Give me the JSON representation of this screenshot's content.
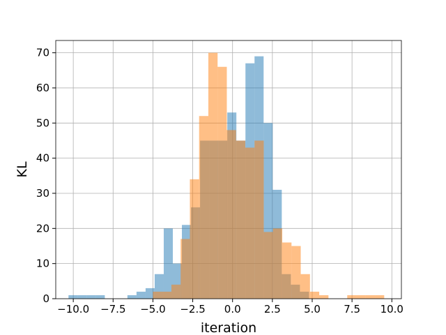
{
  "chart_data": {
    "type": "bar",
    "xlabel": "iteration",
    "ylabel": "KL",
    "xlim": [
      -11.1,
      10.6
    ],
    "ylim": [
      0,
      73.5
    ],
    "xticks": [
      -10.0,
      -7.5,
      -5.0,
      -2.5,
      0.0,
      2.5,
      5.0,
      7.5,
      10.0
    ],
    "xtick_labels": [
      "−10.0",
      "−7.5",
      "−5.0",
      "−2.5",
      "0.0",
      "2.5",
      "5.0",
      "7.5",
      "10.0"
    ],
    "yticks": [
      0,
      10,
      20,
      30,
      40,
      50,
      60,
      70
    ],
    "ytick_labels": [
      "0",
      "10",
      "20",
      "30",
      "40",
      "50",
      "60",
      "70"
    ],
    "grid": true,
    "series": [
      {
        "color": "#1f77b4",
        "opacity": 0.5,
        "bins": [
          [
            -10.3,
            -9.73,
            1
          ],
          [
            -9.73,
            -9.16,
            1
          ],
          [
            -9.16,
            -8.59,
            1
          ],
          [
            -8.59,
            -8.02,
            1
          ],
          [
            -6.6,
            -6.03,
            1
          ],
          [
            -6.03,
            -5.46,
            2
          ],
          [
            -5.46,
            -4.89,
            3
          ],
          [
            -4.89,
            -4.32,
            7
          ],
          [
            -4.32,
            -3.75,
            20
          ],
          [
            -3.75,
            -3.18,
            10
          ],
          [
            -3.18,
            -2.61,
            21
          ],
          [
            -2.61,
            -2.04,
            26
          ],
          [
            -2.04,
            -1.47,
            45
          ],
          [
            -1.47,
            -0.9,
            45
          ],
          [
            -0.9,
            -0.33,
            45
          ],
          [
            -0.33,
            0.24,
            53
          ],
          [
            0.24,
            0.81,
            45
          ],
          [
            0.81,
            1.38,
            67
          ],
          [
            1.38,
            1.95,
            69
          ],
          [
            1.95,
            2.52,
            50
          ],
          [
            2.52,
            3.09,
            31
          ],
          [
            3.09,
            3.66,
            7
          ],
          [
            3.66,
            4.23,
            4
          ],
          [
            4.23,
            4.8,
            2
          ]
        ]
      },
      {
        "color": "#ff7f0e",
        "opacity": 0.5,
        "bins": [
          [
            -5.0,
            -4.42,
            2
          ],
          [
            -4.42,
            -3.84,
            2
          ],
          [
            -3.84,
            -3.26,
            4
          ],
          [
            -3.26,
            -2.68,
            17
          ],
          [
            -2.68,
            -2.1,
            34
          ],
          [
            -2.1,
            -1.52,
            52
          ],
          [
            -1.52,
            -0.94,
            70
          ],
          [
            -0.94,
            -0.36,
            66
          ],
          [
            -0.36,
            0.22,
            48
          ],
          [
            0.22,
            0.8,
            45
          ],
          [
            0.8,
            1.38,
            43
          ],
          [
            1.38,
            1.96,
            45
          ],
          [
            1.96,
            2.54,
            19
          ],
          [
            2.54,
            3.12,
            20
          ],
          [
            3.12,
            3.7,
            16
          ],
          [
            3.7,
            4.28,
            15
          ],
          [
            4.28,
            4.86,
            7
          ],
          [
            4.86,
            5.44,
            2
          ],
          [
            5.44,
            6.02,
            1
          ],
          [
            7.2,
            7.78,
            1
          ],
          [
            7.78,
            8.36,
            1
          ],
          [
            8.36,
            8.94,
            1
          ],
          [
            8.94,
            9.52,
            1
          ]
        ]
      }
    ]
  }
}
